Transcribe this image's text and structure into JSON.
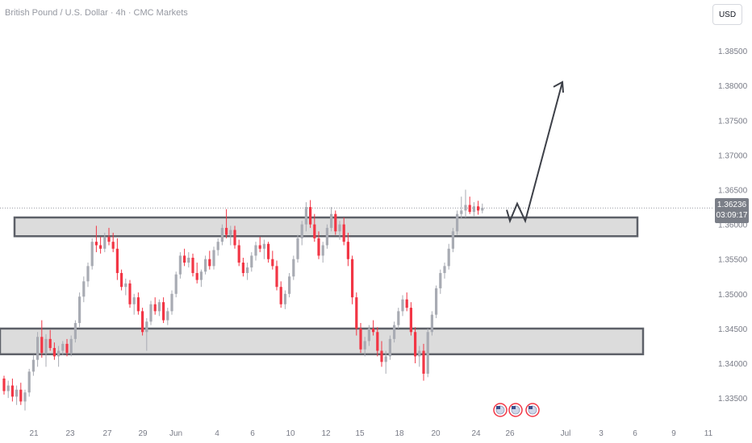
{
  "header": {
    "title": "British Pound / U.S. Dollar · 4h · CMC Markets",
    "currency": "USD"
  },
  "price_tag": {
    "price": "1.36236",
    "countdown": "03:09:17"
  },
  "colors": {
    "up": "#a8abb3",
    "down": "#f23645",
    "zone_fill": "#dcdcdc",
    "zone_stroke": "#5d6068",
    "arrow": "#3d4048",
    "axis_text": "#787b86",
    "price_tag_bg": "#7a7e87"
  },
  "events": {
    "icon": "us-flag-icon",
    "count": 3
  },
  "chart_data": {
    "type": "candlestick",
    "ylim": [
      1.332,
      1.39
    ],
    "yticks": [
      "1.33500",
      "1.34000",
      "1.34500",
      "1.35000",
      "1.35500",
      "1.36000",
      "1.36500",
      "1.37000",
      "1.37500",
      "1.38000",
      "1.38500"
    ],
    "xticks": [
      "21",
      "23",
      "27",
      "29",
      "Jun",
      "4",
      "6",
      "10",
      "12",
      "15",
      "18",
      "20",
      "24",
      "26",
      "Jul",
      "3",
      "6",
      "9",
      "11"
    ],
    "last_price": 1.36236,
    "zones": [
      {
        "low": 1.3583,
        "high": 1.361
      },
      {
        "low": 1.3413,
        "high": 1.345
      }
    ],
    "projection": [
      1.3621,
      1.3605,
      1.363,
      1.3605,
      1.3805
    ],
    "candles": [
      [
        1.3378,
        1.3382,
        1.3355,
        1.336
      ],
      [
        1.336,
        1.3375,
        1.335,
        1.3368
      ],
      [
        1.3368,
        1.3378,
        1.3345,
        1.3352
      ],
      [
        1.3352,
        1.3368,
        1.334,
        1.3362
      ],
      [
        1.3362,
        1.3372,
        1.334,
        1.3345
      ],
      [
        1.3345,
        1.3362,
        1.3332,
        1.3358
      ],
      [
        1.3358,
        1.3392,
        1.3352,
        1.3388
      ],
      [
        1.3388,
        1.3412,
        1.3382,
        1.3405
      ],
      [
        1.3405,
        1.3445,
        1.3395,
        1.3438
      ],
      [
        1.3438,
        1.3462,
        1.3408,
        1.3415
      ],
      [
        1.3415,
        1.3442,
        1.3395,
        1.3435
      ],
      [
        1.3435,
        1.3448,
        1.3418,
        1.3422
      ],
      [
        1.3422,
        1.343,
        1.3405,
        1.341
      ],
      [
        1.341,
        1.3425,
        1.3395,
        1.3418
      ],
      [
        1.3418,
        1.3432,
        1.3412,
        1.3428
      ],
      [
        1.3428,
        1.3435,
        1.341,
        1.3415
      ],
      [
        1.3415,
        1.344,
        1.341,
        1.3435
      ],
      [
        1.3435,
        1.3462,
        1.343,
        1.3458
      ],
      [
        1.3458,
        1.3502,
        1.3452,
        1.3496
      ],
      [
        1.3496,
        1.3525,
        1.3488,
        1.3518
      ],
      [
        1.3518,
        1.3545,
        1.351,
        1.354
      ],
      [
        1.354,
        1.358,
        1.3535,
        1.3575
      ],
      [
        1.3575,
        1.3598,
        1.356,
        1.357
      ],
      [
        1.357,
        1.3582,
        1.3558,
        1.3565
      ],
      [
        1.3565,
        1.3588,
        1.356,
        1.3582
      ],
      [
        1.3582,
        1.3595,
        1.357,
        1.3575
      ],
      [
        1.3575,
        1.3588,
        1.356,
        1.3565
      ],
      [
        1.3565,
        1.358,
        1.352,
        1.353
      ],
      [
        1.353,
        1.3535,
        1.3505,
        1.351
      ],
      [
        1.351,
        1.3522,
        1.3498,
        1.3515
      ],
      [
        1.3515,
        1.352,
        1.348,
        1.3485
      ],
      [
        1.3485,
        1.35,
        1.347,
        1.3495
      ],
      [
        1.3495,
        1.3502,
        1.347,
        1.3475
      ],
      [
        1.3475,
        1.348,
        1.344,
        1.3445
      ],
      [
        1.3445,
        1.3465,
        1.3418,
        1.346
      ],
      [
        1.346,
        1.349,
        1.3455,
        1.3485
      ],
      [
        1.3485,
        1.3495,
        1.347,
        1.3475
      ],
      [
        1.3475,
        1.3492,
        1.3468,
        1.3488
      ],
      [
        1.3488,
        1.3495,
        1.3458,
        1.3462
      ],
      [
        1.3462,
        1.348,
        1.3455,
        1.3475
      ],
      [
        1.3475,
        1.3505,
        1.347,
        1.35
      ],
      [
        1.35,
        1.3532,
        1.3495,
        1.3528
      ],
      [
        1.3528,
        1.356,
        1.3522,
        1.3555
      ],
      [
        1.3555,
        1.3565,
        1.354,
        1.3545
      ],
      [
        1.3545,
        1.356,
        1.3538,
        1.3552
      ],
      [
        1.3552,
        1.3558,
        1.3525,
        1.353
      ],
      [
        1.353,
        1.3545,
        1.3515,
        1.352
      ],
      [
        1.352,
        1.3535,
        1.351,
        1.3532
      ],
      [
        1.3532,
        1.3555,
        1.3528,
        1.355
      ],
      [
        1.355,
        1.3562,
        1.3535,
        1.354
      ],
      [
        1.354,
        1.3568,
        1.3535,
        1.3563
      ],
      [
        1.3563,
        1.358,
        1.3555,
        1.3575
      ],
      [
        1.3575,
        1.36,
        1.357,
        1.3595
      ],
      [
        1.3595,
        1.3622,
        1.358,
        1.3585
      ],
      [
        1.3585,
        1.3598,
        1.357,
        1.3592
      ],
      [
        1.3592,
        1.3598,
        1.3565,
        1.357
      ],
      [
        1.357,
        1.3578,
        1.354,
        1.3545
      ],
      [
        1.3545,
        1.3552,
        1.3525,
        1.353
      ],
      [
        1.353,
        1.3545,
        1.352,
        1.3538
      ],
      [
        1.3538,
        1.356,
        1.3532,
        1.3555
      ],
      [
        1.3555,
        1.3575,
        1.3548,
        1.357
      ],
      [
        1.357,
        1.3582,
        1.356,
        1.3565
      ],
      [
        1.3565,
        1.3578,
        1.355,
        1.3572
      ],
      [
        1.3572,
        1.3575,
        1.3545,
        1.355
      ],
      [
        1.355,
        1.3562,
        1.3535,
        1.354
      ],
      [
        1.354,
        1.3548,
        1.3505,
        1.351
      ],
      [
        1.351,
        1.3518,
        1.348,
        1.3485
      ],
      [
        1.3485,
        1.3505,
        1.3478,
        1.35
      ],
      [
        1.35,
        1.353,
        1.3495,
        1.3525
      ],
      [
        1.3525,
        1.3555,
        1.352,
        1.355
      ],
      [
        1.355,
        1.3585,
        1.3545,
        1.358
      ],
      [
        1.358,
        1.3605,
        1.357,
        1.36
      ],
      [
        1.36,
        1.3632,
        1.359,
        1.3625
      ],
      [
        1.3625,
        1.3635,
        1.3595,
        1.36
      ],
      [
        1.36,
        1.3615,
        1.3575,
        1.358
      ],
      [
        1.358,
        1.359,
        1.355,
        1.3555
      ],
      [
        1.3555,
        1.3575,
        1.3545,
        1.357
      ],
      [
        1.357,
        1.36,
        1.3565,
        1.3595
      ],
      [
        1.3595,
        1.3625,
        1.359,
        1.3615
      ],
      [
        1.3615,
        1.362,
        1.3585,
        1.359
      ],
      [
        1.359,
        1.3605,
        1.3578,
        1.36
      ],
      [
        1.36,
        1.361,
        1.357,
        1.3575
      ],
      [
        1.3575,
        1.3588,
        1.354,
        1.355
      ],
      [
        1.355,
        1.3555,
        1.3485,
        1.3495
      ],
      [
        1.3495,
        1.3502,
        1.344,
        1.345
      ],
      [
        1.345,
        1.3458,
        1.3415,
        1.342
      ],
      [
        1.342,
        1.3438,
        1.341,
        1.3432
      ],
      [
        1.3432,
        1.3455,
        1.3425,
        1.345
      ],
      [
        1.345,
        1.3462,
        1.344,
        1.3445
      ],
      [
        1.3445,
        1.3452,
        1.341,
        1.3418
      ],
      [
        1.3418,
        1.3432,
        1.3395,
        1.3402
      ],
      [
        1.3402,
        1.3418,
        1.3385,
        1.341
      ],
      [
        1.341,
        1.344,
        1.3405,
        1.3435
      ],
      [
        1.3435,
        1.346,
        1.343,
        1.3455
      ],
      [
        1.3455,
        1.348,
        1.345,
        1.3475
      ],
      [
        1.3475,
        1.3498,
        1.3468,
        1.3492
      ],
      [
        1.3492,
        1.3502,
        1.3475,
        1.348
      ],
      [
        1.348,
        1.3488,
        1.344,
        1.3445
      ],
      [
        1.3445,
        1.3452,
        1.34,
        1.341
      ],
      [
        1.341,
        1.3425,
        1.3395,
        1.3418
      ],
      [
        1.3418,
        1.3428,
        1.3375,
        1.3385
      ],
      [
        1.3385,
        1.345,
        1.338,
        1.3445
      ],
      [
        1.3445,
        1.3475,
        1.344,
        1.347
      ],
      [
        1.347,
        1.3512,
        1.3465,
        1.3508
      ],
      [
        1.3508,
        1.3535,
        1.35,
        1.353
      ],
      [
        1.353,
        1.3545,
        1.3522,
        1.354
      ],
      [
        1.354,
        1.3572,
        1.3535,
        1.3565
      ],
      [
        1.3565,
        1.3595,
        1.356,
        1.359
      ],
      [
        1.359,
        1.362,
        1.3585,
        1.3615
      ],
      [
        1.3615,
        1.364,
        1.3608,
        1.362
      ],
      [
        1.362,
        1.365,
        1.361,
        1.3628
      ],
      [
        1.3628,
        1.364,
        1.3615,
        1.3618
      ],
      [
        1.3618,
        1.3632,
        1.3612,
        1.3626
      ],
      [
        1.3626,
        1.3634,
        1.3614,
        1.362
      ],
      [
        1.362,
        1.363,
        1.3616,
        1.3624
      ]
    ]
  }
}
